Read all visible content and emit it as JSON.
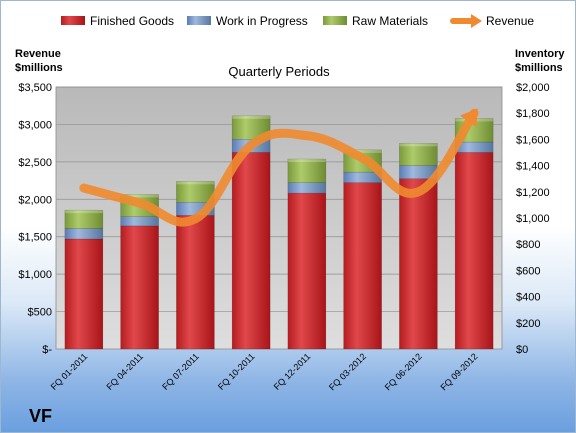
{
  "company": "VF",
  "colors": {
    "finished_goods": "#c0262a",
    "work_in_progress": "#6f8fc2",
    "raw_materials": "#8fae4a",
    "revenue": "#f0892f"
  },
  "chart_data": {
    "type": "bar",
    "title": "Quarterly Periods",
    "stacked": true,
    "categories": [
      "FQ 01-2011",
      "FQ 04-2011",
      "FQ 07-2011",
      "FQ 10-2011",
      "FQ 12-2011",
      "FQ 03-2012",
      "FQ 06-2012",
      "FQ 09-2012"
    ],
    "series": [
      {
        "name": "Finished Goods",
        "axis": "right",
        "values": [
          840,
          940,
          1020,
          1500,
          1190,
          1270,
          1300,
          1500
        ]
      },
      {
        "name": "Work in Progress",
        "axis": "right",
        "values": [
          80,
          70,
          100,
          100,
          80,
          80,
          100,
          80
        ]
      },
      {
        "name": "Raw Materials",
        "axis": "right",
        "values": [
          140,
          170,
          160,
          180,
          180,
          170,
          170,
          180
        ]
      },
      {
        "name": "Revenue",
        "axis": "left",
        "type": "line",
        "values": [
          2150,
          1950,
          1740,
          2720,
          2850,
          2550,
          2100,
          3150
        ]
      }
    ],
    "y_left": {
      "label_line1": "Revenue",
      "label_line2": "$millions",
      "range": [
        0,
        3500
      ],
      "ticks": [
        "$-",
        "$500",
        "$1,000",
        "$1,500",
        "$2,000",
        "$2,500",
        "$3,000",
        "$3,500"
      ]
    },
    "y_right": {
      "label_line1": "Inventory",
      "label_line2": "$millions",
      "range": [
        0,
        2000
      ],
      "ticks": [
        "$0",
        "$200",
        "$400",
        "$600",
        "$800",
        "$1,000",
        "$1,200",
        "$1,400",
        "$1,600",
        "$1,800",
        "$2,000"
      ]
    },
    "legend_position": "top",
    "grid": true
  }
}
